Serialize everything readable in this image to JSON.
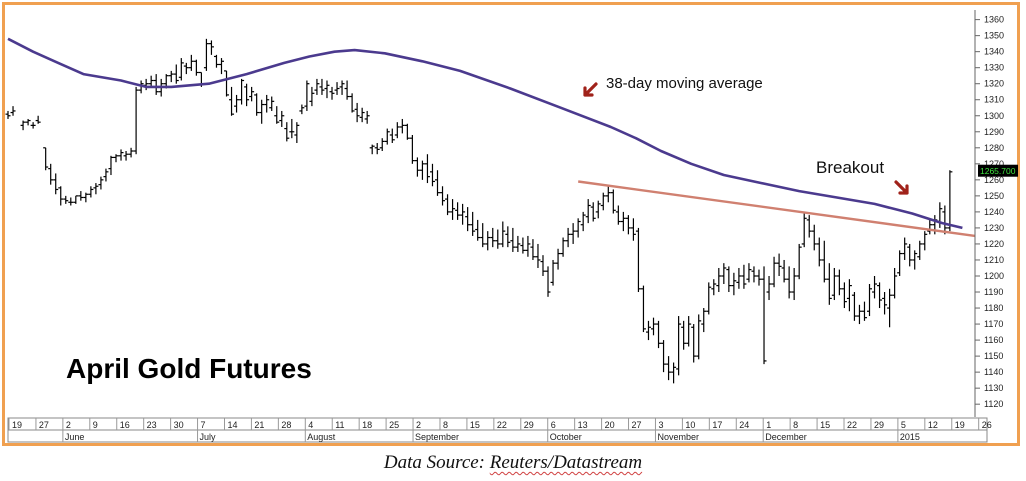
{
  "source_prefix": "Data Source: ",
  "source_name": "Reuters/Datastream",
  "chart_data": {
    "type": "ohlc-bar",
    "title": "April Gold Futures",
    "ylim": [
      1112,
      1366
    ],
    "y_ticks": [
      1120,
      1130,
      1140,
      1150,
      1160,
      1170,
      1180,
      1190,
      1200,
      1210,
      1220,
      1230,
      1240,
      1250,
      1260,
      1270,
      1280,
      1290,
      1300,
      1310,
      1320,
      1330,
      1340,
      1350,
      1360
    ],
    "last_price_label": "1265.700",
    "annotations": {
      "moving_average": "38-day moving average",
      "breakout": "Breakout"
    },
    "x_day_labels": [
      "19",
      "27",
      "2",
      "9",
      "16",
      "23",
      "30",
      "7",
      "14",
      "21",
      "28",
      "4",
      "11",
      "18",
      "25",
      "2",
      "8",
      "15",
      "22",
      "29",
      "6",
      "13",
      "20",
      "27",
      "3",
      "10",
      "17",
      "24",
      "1",
      "8",
      "15",
      "22",
      "29",
      "5",
      "12",
      "19",
      "26"
    ],
    "x_month_labels": [
      "June",
      "July",
      "August",
      "September",
      "October",
      "November",
      "December",
      "2015"
    ],
    "grid": false,
    "series": [
      {
        "name": "38-day moving average",
        "color": "#4b3a8e",
        "values": [
          [
            0,
            1348
          ],
          [
            10,
            1340
          ],
          [
            20,
            1333
          ],
          [
            30,
            1326
          ],
          [
            45,
            1322
          ],
          [
            55,
            1318
          ],
          [
            65,
            1318
          ],
          [
            80,
            1320
          ],
          [
            95,
            1326
          ],
          [
            110,
            1333
          ],
          [
            120,
            1337
          ],
          [
            130,
            1340
          ],
          [
            138,
            1341
          ],
          [
            150,
            1339
          ],
          [
            165,
            1334
          ],
          [
            180,
            1328
          ],
          [
            200,
            1317
          ],
          [
            220,
            1305
          ],
          [
            240,
            1293
          ],
          [
            250,
            1286
          ],
          [
            260,
            1278
          ],
          [
            272,
            1270
          ],
          [
            285,
            1263
          ],
          [
            300,
            1258
          ],
          [
            315,
            1253
          ],
          [
            330,
            1249
          ],
          [
            345,
            1245
          ],
          [
            360,
            1239
          ],
          [
            372,
            1233
          ],
          [
            380,
            1230
          ]
        ]
      },
      {
        "name": "trendline",
        "color": "#d08070",
        "values": [
          [
            227,
            1259
          ],
          [
            385,
            1225
          ]
        ]
      }
    ],
    "bars": [
      [
        0,
        1303,
        1298,
        1301,
        1300
      ],
      [
        2,
        1306,
        1300,
        1302,
        1303
      ],
      [
        6,
        1297,
        1291,
        1294,
        1296
      ],
      [
        8,
        1298,
        1294,
        1296,
        1297
      ],
      [
        10,
        1296,
        1292,
        1294,
        1294
      ],
      [
        12,
        1300,
        1295,
        1297,
        1296
      ],
      [
        15,
        1280,
        1266,
        1280,
        1268
      ],
      [
        17,
        1270,
        1257,
        1267,
        1260
      ],
      [
        19,
        1264,
        1251,
        1260,
        1254
      ],
      [
        21,
        1256,
        1244,
        1255,
        1248
      ],
      [
        23,
        1250,
        1245,
        1248,
        1247
      ],
      [
        25,
        1249,
        1244,
        1246,
        1246
      ],
      [
        27,
        1250,
        1245,
        1246,
        1250
      ],
      [
        29,
        1253,
        1247,
        1250,
        1249
      ],
      [
        31,
        1252,
        1246,
        1249,
        1251
      ],
      [
        33,
        1256,
        1249,
        1251,
        1254
      ],
      [
        35,
        1258,
        1251,
        1255,
        1256
      ],
      [
        37,
        1262,
        1254,
        1257,
        1260
      ],
      [
        39,
        1267,
        1259,
        1262,
        1265
      ],
      [
        41,
        1275,
        1263,
        1267,
        1274
      ],
      [
        43,
        1276,
        1271,
        1274,
        1275
      ],
      [
        45,
        1279,
        1272,
        1275,
        1277
      ],
      [
        47,
        1278,
        1272,
        1275,
        1276
      ],
      [
        49,
        1280,
        1274,
        1276,
        1278
      ],
      [
        51,
        1318,
        1276,
        1278,
        1316
      ],
      [
        53,
        1322,
        1314,
        1316,
        1320
      ],
      [
        55,
        1323,
        1316,
        1319,
        1320
      ],
      [
        57,
        1325,
        1318,
        1320,
        1322
      ],
      [
        59,
        1326,
        1313,
        1322,
        1315
      ],
      [
        61,
        1323,
        1312,
        1315,
        1320
      ],
      [
        63,
        1326,
        1317,
        1320,
        1325
      ],
      [
        65,
        1328,
        1321,
        1325,
        1326
      ],
      [
        67,
        1332,
        1320,
        1326,
        1322
      ],
      [
        69,
        1336,
        1322,
        1324,
        1333
      ],
      [
        71,
        1333,
        1326,
        1331,
        1330
      ],
      [
        73,
        1338,
        1328,
        1330,
        1334
      ],
      [
        75,
        1335,
        1325,
        1334,
        1327
      ],
      [
        77,
        1327,
        1318,
        1327,
        1320
      ],
      [
        79,
        1348,
        1328,
        1330,
        1345
      ],
      [
        81,
        1347,
        1338,
        1345,
        1343
      ],
      [
        83,
        1338,
        1330,
        1337,
        1332
      ],
      [
        85,
        1336,
        1326,
        1332,
        1334
      ],
      [
        87,
        1328,
        1312,
        1328,
        1313
      ],
      [
        89,
        1318,
        1300,
        1310,
        1301
      ],
      [
        91,
        1313,
        1302,
        1306,
        1310
      ],
      [
        93,
        1323,
        1307,
        1310,
        1322
      ],
      [
        95,
        1320,
        1306,
        1318,
        1310
      ],
      [
        97,
        1318,
        1309,
        1312,
        1315
      ],
      [
        99,
        1314,
        1300,
        1313,
        1302
      ],
      [
        101,
        1310,
        1295,
        1302,
        1307
      ],
      [
        103,
        1313,
        1302,
        1307,
        1310
      ],
      [
        105,
        1312,
        1303,
        1305,
        1309
      ],
      [
        107,
        1306,
        1295,
        1300,
        1296
      ],
      [
        109,
        1303,
        1293,
        1297,
        1300
      ],
      [
        111,
        1296,
        1284,
        1292,
        1286
      ],
      [
        113,
        1298,
        1286,
        1290,
        1290
      ],
      [
        115,
        1296,
        1283,
        1288,
        1294
      ],
      [
        117,
        1307,
        1301,
        1303,
        1305
      ],
      [
        119,
        1322,
        1303,
        1306,
        1320
      ],
      [
        121,
        1318,
        1306,
        1309,
        1314
      ],
      [
        123,
        1323,
        1313,
        1316,
        1320
      ],
      [
        125,
        1323,
        1313,
        1318,
        1316
      ],
      [
        127,
        1322,
        1311,
        1317,
        1319
      ],
      [
        129,
        1318,
        1310,
        1315,
        1314
      ],
      [
        131,
        1321,
        1313,
        1316,
        1317
      ],
      [
        133,
        1322,
        1313,
        1318,
        1320
      ],
      [
        135,
        1322,
        1310,
        1317,
        1312
      ],
      [
        137,
        1314,
        1302,
        1312,
        1303
      ],
      [
        139,
        1308,
        1296,
        1304,
        1300
      ],
      [
        141,
        1305,
        1296,
        1299,
        1302
      ],
      [
        143,
        1303,
        1295,
        1298,
        1300
      ],
      [
        145,
        1282,
        1276,
        1280,
        1281
      ],
      [
        147,
        1283,
        1276,
        1280,
        1279
      ],
      [
        149,
        1286,
        1278,
        1280,
        1284
      ],
      [
        151,
        1292,
        1282,
        1284,
        1290
      ],
      [
        153,
        1292,
        1283,
        1288,
        1285
      ],
      [
        155,
        1296,
        1286,
        1288,
        1293
      ],
      [
        157,
        1298,
        1289,
        1293,
        1294
      ],
      [
        159,
        1295,
        1285,
        1294,
        1286
      ],
      [
        161,
        1288,
        1270,
        1286,
        1272
      ],
      [
        163,
        1274,
        1262,
        1272,
        1266
      ],
      [
        165,
        1272,
        1260,
        1266,
        1270
      ],
      [
        167,
        1276,
        1258,
        1270,
        1262
      ],
      [
        169,
        1270,
        1256,
        1265,
        1259
      ],
      [
        171,
        1266,
        1250,
        1260,
        1252
      ],
      [
        173,
        1256,
        1244,
        1252,
        1247
      ],
      [
        175,
        1251,
        1238,
        1248,
        1240
      ],
      [
        177,
        1248,
        1235,
        1240,
        1242
      ],
      [
        179,
        1246,
        1235,
        1241,
        1238
      ],
      [
        181,
        1245,
        1232,
        1238,
        1240
      ],
      [
        183,
        1243,
        1228,
        1237,
        1232
      ],
      [
        185,
        1240,
        1225,
        1232,
        1228
      ],
      [
        187,
        1235,
        1222,
        1229,
        1224
      ],
      [
        189,
        1233,
        1218,
        1224,
        1220
      ],
      [
        191,
        1228,
        1216,
        1220,
        1224
      ],
      [
        193,
        1230,
        1218,
        1224,
        1222
      ],
      [
        195,
        1229,
        1217,
        1222,
        1220
      ],
      [
        197,
        1234,
        1218,
        1220,
        1228
      ],
      [
        199,
        1231,
        1218,
        1226,
        1221
      ],
      [
        201,
        1230,
        1215,
        1222,
        1218
      ],
      [
        203,
        1225,
        1215,
        1218,
        1220
      ],
      [
        205,
        1224,
        1214,
        1219,
        1216
      ],
      [
        207,
        1225,
        1212,
        1216,
        1220
      ],
      [
        209,
        1223,
        1210,
        1218,
        1212
      ],
      [
        211,
        1220,
        1205,
        1212,
        1210
      ],
      [
        213,
        1213,
        1200,
        1209,
        1203
      ],
      [
        215,
        1206,
        1187,
        1203,
        1190
      ],
      [
        217,
        1210,
        1194,
        1196,
        1208
      ],
      [
        219,
        1217,
        1204,
        1208,
        1214
      ],
      [
        221,
        1224,
        1212,
        1214,
        1222
      ],
      [
        223,
        1230,
        1218,
        1222,
        1226
      ],
      [
        225,
        1233,
        1220,
        1226,
        1228
      ],
      [
        227,
        1236,
        1224,
        1228,
        1234
      ],
      [
        229,
        1240,
        1228,
        1232,
        1238
      ],
      [
        231,
        1248,
        1233,
        1237,
        1244
      ],
      [
        233,
        1246,
        1234,
        1243,
        1236
      ],
      [
        235,
        1247,
        1236,
        1240,
        1245
      ],
      [
        237,
        1252,
        1241,
        1244,
        1250
      ],
      [
        239,
        1256,
        1246,
        1250,
        1252
      ],
      [
        241,
        1254,
        1239,
        1252,
        1241
      ],
      [
        243,
        1244,
        1232,
        1240,
        1234
      ],
      [
        245,
        1240,
        1228,
        1234,
        1236
      ],
      [
        247,
        1238,
        1226,
        1236,
        1230
      ],
      [
        249,
        1236,
        1222,
        1230,
        1226
      ],
      [
        251,
        1230,
        1190,
        1228,
        1192
      ],
      [
        253,
        1194,
        1165,
        1192,
        1167
      ],
      [
        255,
        1172,
        1160,
        1165,
        1168
      ],
      [
        257,
        1174,
        1163,
        1167,
        1170
      ],
      [
        259,
        1172,
        1155,
        1170,
        1158
      ],
      [
        261,
        1160,
        1140,
        1158,
        1145
      ],
      [
        263,
        1150,
        1135,
        1145,
        1140
      ],
      [
        265,
        1146,
        1133,
        1140,
        1143
      ],
      [
        267,
        1175,
        1138,
        1142,
        1170
      ],
      [
        269,
        1172,
        1154,
        1168,
        1158
      ],
      [
        271,
        1175,
        1156,
        1158,
        1170
      ],
      [
        273,
        1170,
        1146,
        1168,
        1150
      ],
      [
        275,
        1176,
        1148,
        1150,
        1172
      ],
      [
        277,
        1180,
        1165,
        1170,
        1178
      ],
      [
        279,
        1196,
        1176,
        1178,
        1193
      ],
      [
        281,
        1198,
        1188,
        1192,
        1195
      ],
      [
        283,
        1205,
        1190,
        1194,
        1200
      ],
      [
        285,
        1208,
        1195,
        1200,
        1205
      ],
      [
        287,
        1206,
        1190,
        1204,
        1194
      ],
      [
        289,
        1202,
        1188,
        1194,
        1197
      ],
      [
        291,
        1205,
        1192,
        1196,
        1200
      ],
      [
        293,
        1207,
        1192,
        1200,
        1195
      ],
      [
        295,
        1208,
        1196,
        1198,
        1204
      ],
      [
        297,
        1206,
        1196,
        1203,
        1200
      ],
      [
        299,
        1204,
        1194,
        1200,
        1198
      ],
      [
        301,
        1206,
        1145,
        1198,
        1147
      ],
      [
        303,
        1200,
        1185,
        1190,
        1195
      ],
      [
        305,
        1212,
        1193,
        1195,
        1208
      ],
      [
        307,
        1214,
        1200,
        1208,
        1206
      ],
      [
        309,
        1210,
        1196,
        1205,
        1198
      ],
      [
        311,
        1206,
        1186,
        1198,
        1190
      ],
      [
        313,
        1205,
        1185,
        1190,
        1200
      ],
      [
        315,
        1220,
        1198,
        1200,
        1218
      ],
      [
        317,
        1240,
        1218,
        1220,
        1236
      ],
      [
        319,
        1238,
        1224,
        1235,
        1228
      ],
      [
        321,
        1232,
        1216,
        1228,
        1220
      ],
      [
        323,
        1224,
        1206,
        1220,
        1210
      ],
      [
        325,
        1222,
        1196,
        1210,
        1198
      ],
      [
        327,
        1208,
        1182,
        1198,
        1186
      ],
      [
        329,
        1205,
        1185,
        1188,
        1200
      ],
      [
        331,
        1204,
        1188,
        1200,
        1192
      ],
      [
        333,
        1196,
        1180,
        1192,
        1184
      ],
      [
        335,
        1198,
        1178,
        1186,
        1194
      ],
      [
        337,
        1190,
        1172,
        1188,
        1175
      ],
      [
        339,
        1182,
        1170,
        1175,
        1178
      ],
      [
        341,
        1184,
        1172,
        1178,
        1174
      ],
      [
        343,
        1195,
        1175,
        1178,
        1192
      ],
      [
        345,
        1200,
        1186,
        1190,
        1195
      ],
      [
        347,
        1196,
        1180,
        1194,
        1185
      ],
      [
        349,
        1190,
        1176,
        1186,
        1182
      ],
      [
        351,
        1192,
        1168,
        1180,
        1188
      ],
      [
        353,
        1205,
        1186,
        1188,
        1200
      ],
      [
        355,
        1216,
        1200,
        1202,
        1214
      ],
      [
        357,
        1224,
        1210,
        1214,
        1220
      ],
      [
        359,
        1220,
        1206,
        1218,
        1210
      ],
      [
        361,
        1216,
        1204,
        1210,
        1214
      ],
      [
        363,
        1222,
        1210,
        1212,
        1220
      ],
      [
        365,
        1228,
        1216,
        1220,
        1226
      ],
      [
        367,
        1236,
        1226,
        1228,
        1232
      ],
      [
        369,
        1238,
        1226,
        1232,
        1235
      ],
      [
        371,
        1246,
        1230,
        1234,
        1242
      ],
      [
        373,
        1244,
        1226,
        1240,
        1230
      ],
      [
        375,
        1266,
        1228,
        1230,
        1265
      ]
    ]
  }
}
